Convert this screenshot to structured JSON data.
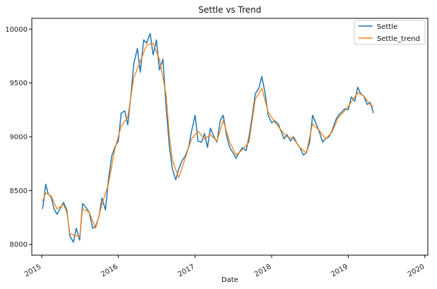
{
  "chart_data": {
    "type": "line",
    "title": "Settle vs Trend",
    "xlabel": "Date",
    "ylabel": "",
    "xlim": [
      "2014-11-15",
      "2020-01-15"
    ],
    "ylim": [
      7900,
      10100
    ],
    "x_ticks": [
      "2015",
      "2016",
      "2017",
      "2018",
      "2019",
      "2020"
    ],
    "y_ticks": [
      8000,
      8500,
      9000,
      9500,
      10000
    ],
    "grid": false,
    "legend_position": "top-right",
    "series": [
      {
        "name": "Settle",
        "color": "#1f77b4",
        "points": [
          [
            "2015-01-05",
            8330
          ],
          [
            "2015-01-12",
            8420
          ],
          [
            "2015-01-20",
            8560
          ],
          [
            "2015-02-01",
            8470
          ],
          [
            "2015-02-15",
            8440
          ],
          [
            "2015-03-01",
            8330
          ],
          [
            "2015-03-15",
            8280
          ],
          [
            "2015-04-01",
            8340
          ],
          [
            "2015-04-15",
            8390
          ],
          [
            "2015-05-01",
            8320
          ],
          [
            "2015-05-15",
            8080
          ],
          [
            "2015-06-01",
            8020
          ],
          [
            "2015-06-15",
            8150
          ],
          [
            "2015-07-01",
            8040
          ],
          [
            "2015-07-15",
            8380
          ],
          [
            "2015-08-01",
            8340
          ],
          [
            "2015-08-15",
            8300
          ],
          [
            "2015-09-01",
            8150
          ],
          [
            "2015-09-15",
            8170
          ],
          [
            "2015-10-01",
            8260
          ],
          [
            "2015-10-15",
            8430
          ],
          [
            "2015-11-01",
            8320
          ],
          [
            "2015-11-15",
            8600
          ],
          [
            "2015-12-01",
            8820
          ],
          [
            "2015-12-15",
            8900
          ],
          [
            "2016-01-01",
            8960
          ],
          [
            "2016-01-15",
            9220
          ],
          [
            "2016-02-01",
            9240
          ],
          [
            "2016-02-15",
            9110
          ],
          [
            "2016-03-01",
            9380
          ],
          [
            "2016-03-15",
            9680
          ],
          [
            "2016-04-01",
            9820
          ],
          [
            "2016-04-15",
            9600
          ],
          [
            "2016-05-01",
            9900
          ],
          [
            "2016-05-15",
            9870
          ],
          [
            "2016-06-01",
            9960
          ],
          [
            "2016-06-15",
            9760
          ],
          [
            "2016-07-01",
            9900
          ],
          [
            "2016-07-15",
            9620
          ],
          [
            "2016-08-01",
            9720
          ],
          [
            "2016-08-15",
            9300
          ],
          [
            "2016-09-01",
            8900
          ],
          [
            "2016-09-15",
            8700
          ],
          [
            "2016-10-01",
            8600
          ],
          [
            "2016-10-15",
            8700
          ],
          [
            "2016-11-01",
            8780
          ],
          [
            "2016-11-15",
            8820
          ],
          [
            "2016-12-01",
            8900
          ],
          [
            "2016-12-15",
            9050
          ],
          [
            "2017-01-01",
            9200
          ],
          [
            "2017-01-15",
            8960
          ],
          [
            "2017-02-01",
            8950
          ],
          [
            "2017-02-15",
            9030
          ],
          [
            "2017-03-01",
            8900
          ],
          [
            "2017-03-15",
            9080
          ],
          [
            "2017-04-01",
            9000
          ],
          [
            "2017-04-15",
            8950
          ],
          [
            "2017-05-01",
            9150
          ],
          [
            "2017-05-15",
            9200
          ],
          [
            "2017-06-01",
            9000
          ],
          [
            "2017-06-15",
            8900
          ],
          [
            "2017-07-01",
            8850
          ],
          [
            "2017-07-15",
            8800
          ],
          [
            "2017-08-01",
            8860
          ],
          [
            "2017-08-15",
            8900
          ],
          [
            "2017-09-01",
            8870
          ],
          [
            "2017-09-15",
            9000
          ],
          [
            "2017-10-01",
            9200
          ],
          [
            "2017-10-15",
            9400
          ],
          [
            "2017-11-01",
            9450
          ],
          [
            "2017-11-15",
            9560
          ],
          [
            "2017-12-01",
            9400
          ],
          [
            "2017-12-15",
            9200
          ],
          [
            "2018-01-01",
            9130
          ],
          [
            "2018-01-15",
            9150
          ],
          [
            "2018-02-01",
            9120
          ],
          [
            "2018-02-15",
            9050
          ],
          [
            "2018-03-01",
            8980
          ],
          [
            "2018-03-15",
            9020
          ],
          [
            "2018-04-01",
            8960
          ],
          [
            "2018-04-15",
            9000
          ],
          [
            "2018-05-01",
            8940
          ],
          [
            "2018-05-15",
            8900
          ],
          [
            "2018-06-01",
            8830
          ],
          [
            "2018-06-15",
            8850
          ],
          [
            "2018-07-01",
            8950
          ],
          [
            "2018-07-15",
            9200
          ],
          [
            "2018-08-01",
            9120
          ],
          [
            "2018-08-15",
            9050
          ],
          [
            "2018-09-01",
            8950
          ],
          [
            "2018-09-15",
            8980
          ],
          [
            "2018-10-01",
            9000
          ],
          [
            "2018-10-15",
            9050
          ],
          [
            "2018-11-01",
            9150
          ],
          [
            "2018-11-15",
            9200
          ],
          [
            "2018-12-01",
            9230
          ],
          [
            "2018-12-15",
            9260
          ],
          [
            "2019-01-01",
            9250
          ],
          [
            "2019-01-15",
            9370
          ],
          [
            "2019-02-01",
            9330
          ],
          [
            "2019-02-15",
            9460
          ],
          [
            "2019-03-01",
            9400
          ],
          [
            "2019-03-15",
            9380
          ],
          [
            "2019-04-01",
            9300
          ],
          [
            "2019-04-15",
            9320
          ],
          [
            "2019-05-01",
            9220
          ]
        ]
      },
      {
        "name": "Settle_trend",
        "color": "#ff7f0e",
        "points": [
          [
            "2015-01-05",
            8400
          ],
          [
            "2015-01-20",
            8480
          ],
          [
            "2015-02-15",
            8450
          ],
          [
            "2015-03-15",
            8330
          ],
          [
            "2015-04-15",
            8370
          ],
          [
            "2015-05-01",
            8300
          ],
          [
            "2015-05-15",
            8100
          ],
          [
            "2015-06-15",
            8080
          ],
          [
            "2015-07-01",
            8070
          ],
          [
            "2015-07-15",
            8330
          ],
          [
            "2015-08-15",
            8300
          ],
          [
            "2015-09-15",
            8150
          ],
          [
            "2015-10-15",
            8370
          ],
          [
            "2015-11-15",
            8560
          ],
          [
            "2015-12-15",
            8880
          ],
          [
            "2016-01-15",
            9100
          ],
          [
            "2016-02-15",
            9180
          ],
          [
            "2016-03-15",
            9550
          ],
          [
            "2016-04-15",
            9700
          ],
          [
            "2016-05-15",
            9850
          ],
          [
            "2016-06-15",
            9870
          ],
          [
            "2016-07-15",
            9720
          ],
          [
            "2016-08-15",
            9400
          ],
          [
            "2016-09-01",
            9000
          ],
          [
            "2016-09-15",
            8780
          ],
          [
            "2016-10-15",
            8620
          ],
          [
            "2016-11-15",
            8800
          ],
          [
            "2016-12-15",
            8980
          ],
          [
            "2017-01-15",
            9050
          ],
          [
            "2017-02-15",
            8980
          ],
          [
            "2017-03-15",
            9020
          ],
          [
            "2017-04-15",
            8960
          ],
          [
            "2017-05-15",
            9150
          ],
          [
            "2017-06-15",
            8950
          ],
          [
            "2017-07-15",
            8830
          ],
          [
            "2017-08-15",
            8880
          ],
          [
            "2017-09-15",
            8950
          ],
          [
            "2017-10-15",
            9350
          ],
          [
            "2017-11-15",
            9450
          ],
          [
            "2017-12-15",
            9230
          ],
          [
            "2018-01-15",
            9140
          ],
          [
            "2018-02-15",
            9060
          ],
          [
            "2018-03-15",
            9000
          ],
          [
            "2018-04-15",
            8980
          ],
          [
            "2018-05-15",
            8900
          ],
          [
            "2018-06-15",
            8850
          ],
          [
            "2018-07-15",
            9120
          ],
          [
            "2018-08-15",
            9060
          ],
          [
            "2018-09-15",
            8980
          ],
          [
            "2018-10-15",
            9040
          ],
          [
            "2018-11-15",
            9180
          ],
          [
            "2018-12-15",
            9240
          ],
          [
            "2019-01-15",
            9320
          ],
          [
            "2019-02-15",
            9410
          ],
          [
            "2019-03-15",
            9380
          ],
          [
            "2019-04-15",
            9300
          ],
          [
            "2019-05-01",
            9280
          ]
        ]
      }
    ]
  }
}
